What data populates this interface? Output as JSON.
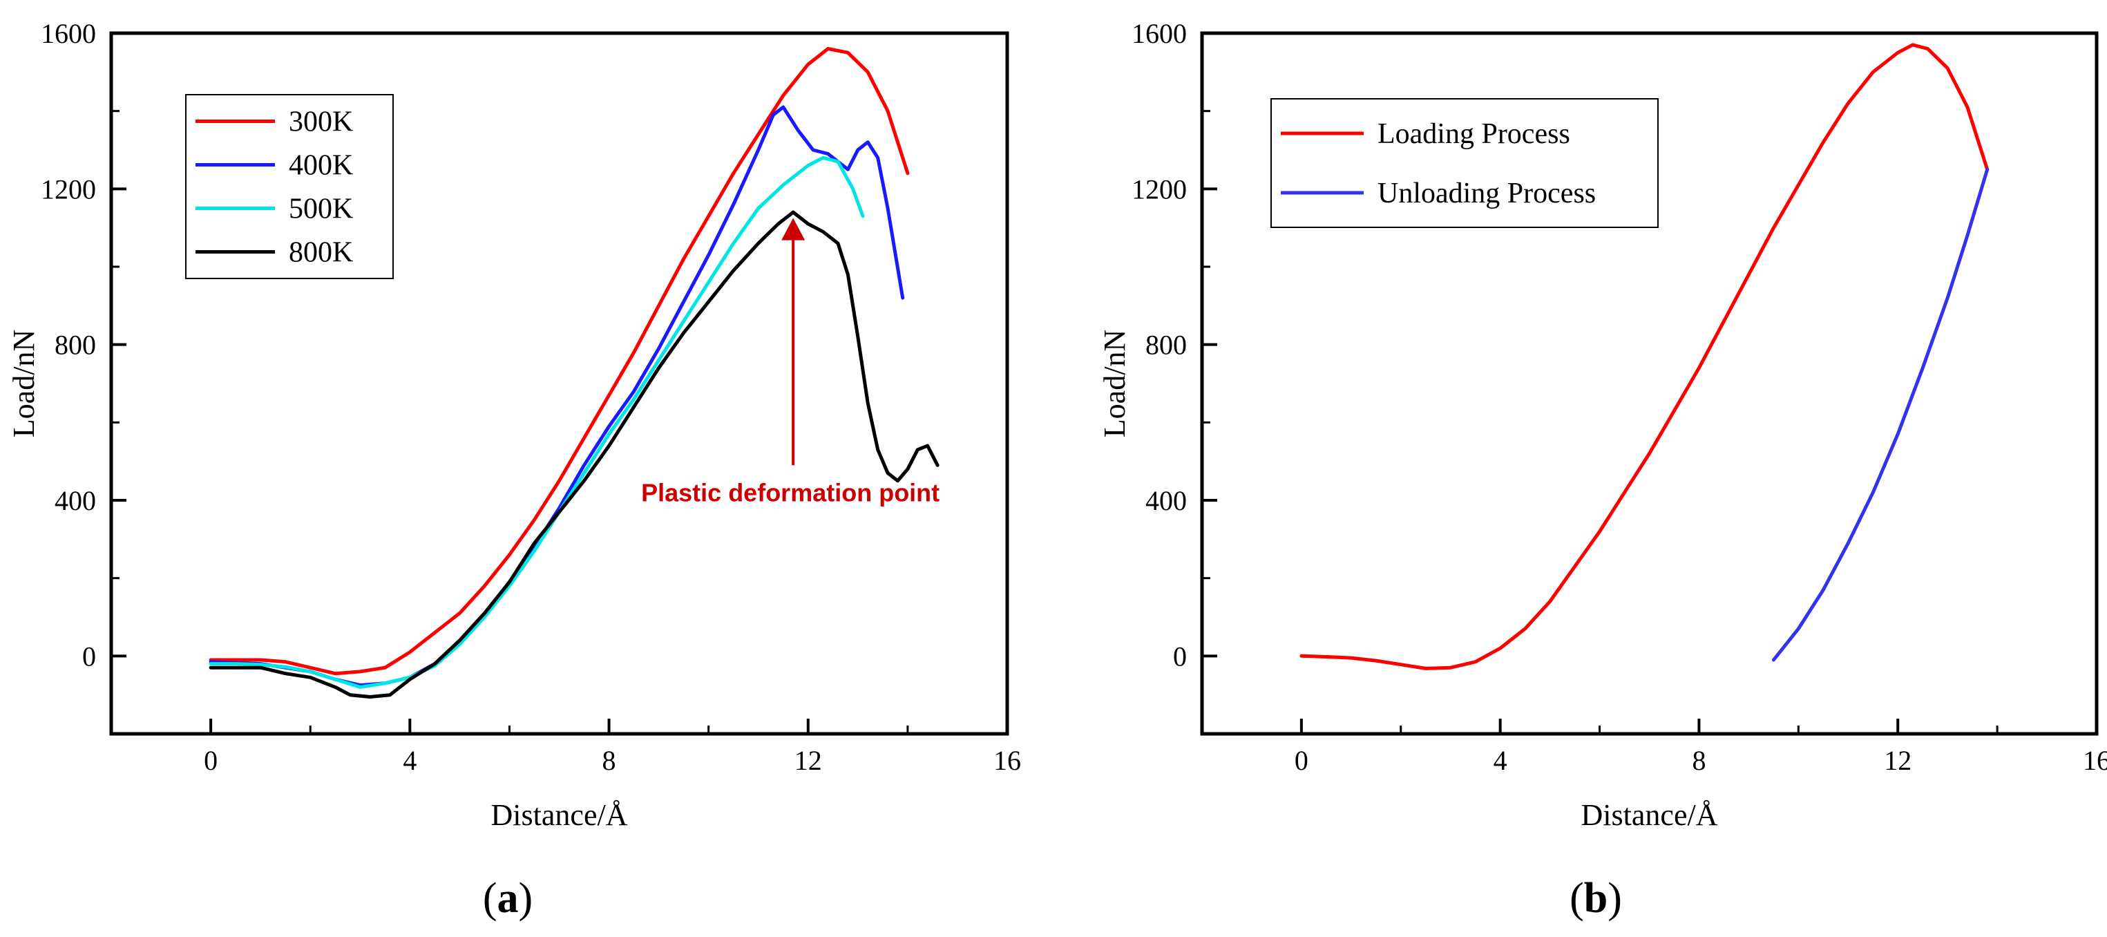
{
  "chart_data": [
    {
      "type": "line",
      "panel_label": "(a)",
      "panel_letter": "a",
      "xlabel": "Distance/Å",
      "ylabel": "Load/nN",
      "xlim": [
        -2,
        16
      ],
      "ylim": [
        -200,
        1600
      ],
      "xticks": [
        0,
        4,
        8,
        12,
        16
      ],
      "yticks": [
        0,
        400,
        800,
        1200,
        1600
      ],
      "grid": false,
      "legend": "top-left",
      "annotation": {
        "text": "Plastic deformation point",
        "color": "#cc0000",
        "arrow_from": [
          11.7,
          490
        ],
        "arrow_to": [
          11.7,
          1125
        ]
      },
      "series": [
        {
          "name": "300K",
          "color": "#ff0000",
          "points": [
            [
              0,
              -10
            ],
            [
              0.5,
              -10
            ],
            [
              1,
              -10
            ],
            [
              1.5,
              -15
            ],
            [
              2,
              -30
            ],
            [
              2.5,
              -45
            ],
            [
              3,
              -40
            ],
            [
              3.5,
              -30
            ],
            [
              4,
              10
            ],
            [
              4.5,
              60
            ],
            [
              5,
              110
            ],
            [
              5.5,
              180
            ],
            [
              6,
              260
            ],
            [
              6.5,
              350
            ],
            [
              7,
              450
            ],
            [
              7.5,
              560
            ],
            [
              8,
              670
            ],
            [
              8.5,
              780
            ],
            [
              9,
              900
            ],
            [
              9.5,
              1020
            ],
            [
              10,
              1130
            ],
            [
              10.5,
              1240
            ],
            [
              11,
              1340
            ],
            [
              11.5,
              1440
            ],
            [
              12,
              1520
            ],
            [
              12.4,
              1560
            ],
            [
              12.8,
              1550
            ],
            [
              13.2,
              1500
            ],
            [
              13.6,
              1400
            ],
            [
              14,
              1240
            ]
          ]
        },
        {
          "name": "400K",
          "color": "#1a1aff",
          "points": [
            [
              0,
              -15
            ],
            [
              0.5,
              -18
            ],
            [
              1,
              -20
            ],
            [
              1.5,
              -30
            ],
            [
              2,
              -40
            ],
            [
              2.5,
              -60
            ],
            [
              3,
              -75
            ],
            [
              3.5,
              -70
            ],
            [
              4,
              -55
            ],
            [
              4.5,
              -20
            ],
            [
              5,
              40
            ],
            [
              5.5,
              110
            ],
            [
              6,
              190
            ],
            [
              6.5,
              280
            ],
            [
              7,
              380
            ],
            [
              7.5,
              490
            ],
            [
              8,
              590
            ],
            [
              8.5,
              680
            ],
            [
              9,
              790
            ],
            [
              9.5,
              910
            ],
            [
              10,
              1030
            ],
            [
              10.5,
              1160
            ],
            [
              11,
              1300
            ],
            [
              11.3,
              1390
            ],
            [
              11.5,
              1410
            ],
            [
              11.8,
              1350
            ],
            [
              12.1,
              1300
            ],
            [
              12.4,
              1290
            ],
            [
              12.8,
              1250
            ],
            [
              13,
              1300
            ],
            [
              13.2,
              1320
            ],
            [
              13.4,
              1280
            ],
            [
              13.6,
              1150
            ],
            [
              13.9,
              920
            ]
          ]
        },
        {
          "name": "500K",
          "color": "#00e5e5",
          "points": [
            [
              0,
              -20
            ],
            [
              0.5,
              -20
            ],
            [
              1,
              -22
            ],
            [
              1.5,
              -28
            ],
            [
              2,
              -40
            ],
            [
              2.5,
              -60
            ],
            [
              3,
              -80
            ],
            [
              3.5,
              -70
            ],
            [
              4,
              -55
            ],
            [
              4.5,
              -25
            ],
            [
              5,
              30
            ],
            [
              5.5,
              100
            ],
            [
              6,
              180
            ],
            [
              6.5,
              270
            ],
            [
              7,
              370
            ],
            [
              7.5,
              470
            ],
            [
              8,
              570
            ],
            [
              8.5,
              660
            ],
            [
              9,
              760
            ],
            [
              9.5,
              860
            ],
            [
              10,
              960
            ],
            [
              10.5,
              1060
            ],
            [
              11,
              1150
            ],
            [
              11.5,
              1210
            ],
            [
              12,
              1260
            ],
            [
              12.3,
              1280
            ],
            [
              12.6,
              1270
            ],
            [
              12.9,
              1200
            ],
            [
              13.1,
              1130
            ]
          ]
        },
        {
          "name": "800K",
          "color": "#000000",
          "points": [
            [
              0,
              -30
            ],
            [
              0.5,
              -30
            ],
            [
              1,
              -30
            ],
            [
              1.5,
              -45
            ],
            [
              2,
              -55
            ],
            [
              2.5,
              -80
            ],
            [
              2.8,
              -100
            ],
            [
              3.2,
              -105
            ],
            [
              3.6,
              -100
            ],
            [
              4,
              -60
            ],
            [
              4.5,
              -20
            ],
            [
              5,
              40
            ],
            [
              5.5,
              110
            ],
            [
              6,
              190
            ],
            [
              6.5,
              290
            ],
            [
              7,
              370
            ],
            [
              7.5,
              450
            ],
            [
              8,
              540
            ],
            [
              8.5,
              640
            ],
            [
              9,
              740
            ],
            [
              9.5,
              830
            ],
            [
              10,
              910
            ],
            [
              10.5,
              990
            ],
            [
              11,
              1060
            ],
            [
              11.4,
              1110
            ],
            [
              11.7,
              1140
            ],
            [
              12,
              1110
            ],
            [
              12.3,
              1090
            ],
            [
              12.6,
              1060
            ],
            [
              12.8,
              980
            ],
            [
              13,
              820
            ],
            [
              13.2,
              650
            ],
            [
              13.4,
              530
            ],
            [
              13.6,
              470
            ],
            [
              13.8,
              450
            ],
            [
              14,
              480
            ],
            [
              14.2,
              530
            ],
            [
              14.4,
              540
            ],
            [
              14.6,
              490
            ]
          ]
        }
      ]
    },
    {
      "type": "line",
      "panel_label": "(b)",
      "panel_letter": "b",
      "xlabel": "Distance/Å",
      "ylabel": "Load/nN",
      "xlim": [
        -2,
        16
      ],
      "ylim": [
        -200,
        1600
      ],
      "xticks": [
        0,
        4,
        8,
        12,
        16
      ],
      "yticks": [
        0,
        400,
        800,
        1200,
        1600
      ],
      "grid": false,
      "legend": "top-left",
      "series": [
        {
          "name": "Loading Process",
          "color": "#ff0000",
          "points": [
            [
              0,
              0
            ],
            [
              0.5,
              -2
            ],
            [
              1,
              -5
            ],
            [
              1.5,
              -12
            ],
            [
              2,
              -22
            ],
            [
              2.5,
              -32
            ],
            [
              3,
              -30
            ],
            [
              3.5,
              -15
            ],
            [
              4,
              20
            ],
            [
              4.5,
              70
            ],
            [
              5,
              140
            ],
            [
              5.5,
              230
            ],
            [
              6,
              320
            ],
            [
              6.5,
              420
            ],
            [
              7,
              520
            ],
            [
              7.5,
              630
            ],
            [
              8,
              740
            ],
            [
              8.5,
              860
            ],
            [
              9,
              980
            ],
            [
              9.5,
              1100
            ],
            [
              10,
              1210
            ],
            [
              10.5,
              1320
            ],
            [
              11,
              1420
            ],
            [
              11.5,
              1500
            ],
            [
              12,
              1550
            ],
            [
              12.3,
              1570
            ],
            [
              12.6,
              1560
            ],
            [
              13,
              1510
            ],
            [
              13.4,
              1410
            ],
            [
              13.8,
              1250
            ]
          ]
        },
        {
          "name": "Unloading Process",
          "color": "#3333ee",
          "points": [
            [
              9.5,
              -10
            ],
            [
              10,
              70
            ],
            [
              10.5,
              170
            ],
            [
              11,
              290
            ],
            [
              11.5,
              420
            ],
            [
              12,
              570
            ],
            [
              12.5,
              740
            ],
            [
              13,
              920
            ],
            [
              13.4,
              1080
            ],
            [
              13.8,
              1250
            ]
          ]
        }
      ]
    }
  ]
}
